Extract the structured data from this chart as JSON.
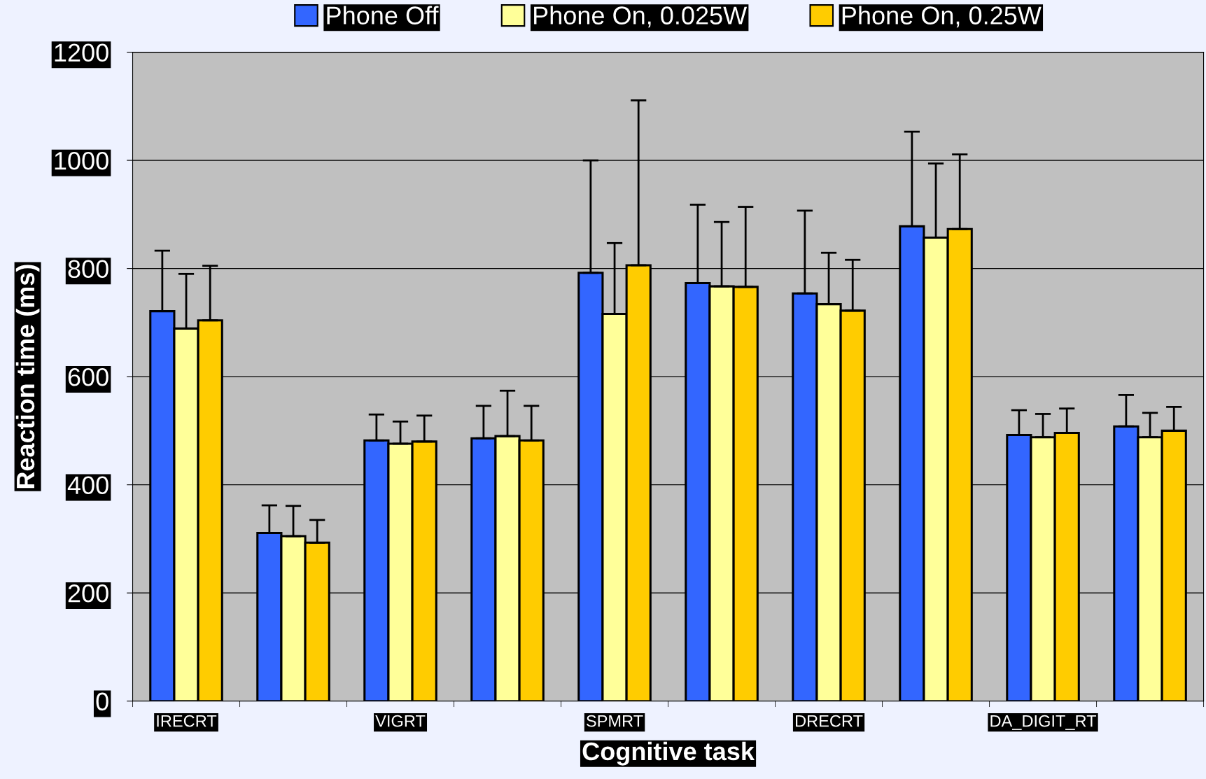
{
  "chart_data": {
    "type": "bar",
    "xlabel": "Cognitive task",
    "ylabel": "Reaction time (ms)",
    "categories": [
      "IRECRT",
      null,
      "VIGRT",
      null,
      "SPMRT",
      null,
      "DRECRT",
      null,
      "DA_DIGIT_RT",
      null
    ],
    "series": [
      {
        "name": "Phone Off",
        "color": "#3366ff",
        "values": [
          721,
          311,
          482,
          486,
          792,
          773,
          754,
          878,
          492,
          508
        ],
        "errors": [
          [
            721,
            833
          ],
          [
            311,
            362
          ],
          [
            482,
            530
          ],
          [
            486,
            546
          ],
          [
            792,
            1000
          ],
          [
            773,
            918
          ],
          [
            754,
            907
          ],
          [
            878,
            1053
          ],
          [
            492,
            538
          ],
          [
            508,
            566
          ]
        ]
      },
      {
        "name": "Phone On, 0.025W",
        "color": "#ffff99",
        "values": [
          689,
          305,
          476,
          490,
          716,
          767,
          734,
          857,
          488,
          488
        ],
        "errors": [
          [
            689,
            790
          ],
          [
            305,
            361
          ],
          [
            476,
            517
          ],
          [
            490,
            574
          ],
          [
            716,
            847
          ],
          [
            767,
            886
          ],
          [
            734,
            829
          ],
          [
            857,
            994
          ],
          [
            488,
            531
          ],
          [
            488,
            533
          ]
        ]
      },
      {
        "name": "Phone On, 0.25W",
        "color": "#ffcc00",
        "values": [
          704,
          293,
          480,
          482,
          806,
          766,
          722,
          873,
          496,
          500
        ],
        "errors": [
          [
            704,
            805
          ],
          [
            293,
            335
          ],
          [
            480,
            528
          ],
          [
            482,
            546
          ],
          [
            806,
            1111
          ],
          [
            766,
            914
          ],
          [
            722,
            816
          ],
          [
            873,
            1011
          ],
          [
            496,
            541
          ],
          [
            500,
            544
          ]
        ]
      }
    ],
    "ylim": [
      0,
      1200
    ],
    "yticks": [
      0,
      200,
      400,
      600,
      800,
      1000,
      1200
    ],
    "grid": "y",
    "legend": "top"
  }
}
